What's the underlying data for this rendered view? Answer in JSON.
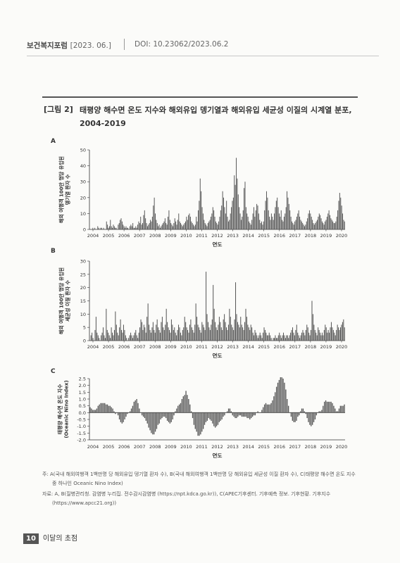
{
  "header": {
    "journal": "보건복지포럼",
    "date": "[2023. 06.]",
    "doi": "DOI: 10.23062/2023.06.2"
  },
  "figure": {
    "label": "[그림 2]",
    "title": "태평양 해수면 온도 지수와 해외유입 뎅기열과 해외유입 세균성 이질의 시계열 분포, 2004-2019"
  },
  "chart_data": [
    {
      "panel": "A",
      "type": "bar",
      "ylabel": "해외 여행객 100만 명당 유입된 뎅기열 환자 수",
      "xlabel": "연도",
      "ylim": [
        0,
        50
      ],
      "yticks": [
        0,
        10,
        20,
        30,
        40,
        50
      ],
      "xticks": [
        "2004",
        "2005",
        "2006",
        "2007",
        "2008",
        "2009",
        "2010",
        "2011",
        "2012",
        "2013",
        "2014",
        "2015",
        "2016",
        "2017",
        "2018",
        "2019",
        "2020"
      ],
      "x_start": "2004-01",
      "values": [
        0,
        0,
        0,
        1,
        0,
        1,
        0,
        0,
        2,
        1,
        0,
        1,
        1,
        0,
        1,
        0,
        0,
        5,
        3,
        1,
        2,
        6,
        2,
        1,
        3,
        2,
        1,
        1,
        0,
        3,
        4,
        6,
        7,
        5,
        3,
        2,
        1,
        2,
        1,
        1,
        0,
        2,
        3,
        2,
        4,
        1,
        1,
        2,
        1,
        3,
        5,
        4,
        8,
        3,
        4,
        9,
        12,
        7,
        4,
        2,
        3,
        4,
        6,
        5,
        8,
        15,
        20,
        10,
        6,
        4,
        2,
        3,
        1,
        2,
        3,
        4,
        5,
        7,
        4,
        3,
        8,
        12,
        6,
        4,
        3,
        2,
        4,
        7,
        5,
        3,
        6,
        10,
        5,
        4,
        3,
        2,
        3,
        4,
        5,
        8,
        6,
        9,
        10,
        8,
        5,
        4,
        3,
        2,
        3,
        8,
        5,
        12,
        18,
        32,
        24,
        14,
        10,
        6,
        4,
        3,
        2,
        4,
        5,
        6,
        8,
        10,
        14,
        12,
        8,
        5,
        4,
        3,
        5,
        8,
        12,
        15,
        24,
        20,
        14,
        10,
        18,
        8,
        5,
        6,
        10,
        14,
        18,
        20,
        34,
        28,
        45,
        32,
        22,
        14,
        10,
        6,
        8,
        12,
        26,
        30,
        14,
        10,
        8,
        5,
        4,
        3,
        6,
        10,
        14,
        8,
        12,
        16,
        15,
        10,
        6,
        4,
        5,
        3,
        5,
        12,
        18,
        24,
        20,
        12,
        8,
        6,
        10,
        8,
        6,
        10,
        14,
        18,
        20,
        14,
        10,
        8,
        12,
        6,
        5,
        8,
        10,
        14,
        24,
        20,
        16,
        12,
        8,
        5,
        4,
        3,
        5,
        6,
        8,
        10,
        12,
        8,
        6,
        5,
        4,
        3,
        2,
        3,
        5,
        7,
        10,
        12,
        10,
        8,
        6,
        4,
        3,
        4,
        5,
        6,
        8,
        10,
        9,
        7,
        5,
        4,
        3,
        5,
        6,
        8,
        10,
        12,
        9,
        7,
        6,
        5,
        4,
        4,
        5,
        8,
        12,
        18,
        23,
        20,
        15,
        10,
        6,
        5
      ]
    },
    {
      "panel": "B",
      "type": "bar",
      "ylabel": "해외 여행객 100만 명당 유입된 세균성 이질 환자 수",
      "xlabel": "연도",
      "ylim": [
        0,
        30
      ],
      "yticks": [
        0,
        5,
        10,
        15,
        20,
        25,
        30
      ],
      "xticks": [
        "2004",
        "2005",
        "2006",
        "2007",
        "2008",
        "2009",
        "2010",
        "2011",
        "2012",
        "2013",
        "2014",
        "2015",
        "2016",
        "2017",
        "2018",
        "2019",
        "2020"
      ],
      "x_start": "2004-01",
      "values": [
        0,
        2,
        3,
        1,
        0,
        4,
        9,
        3,
        2,
        1,
        0,
        2,
        3,
        5,
        2,
        1,
        12,
        4,
        3,
        2,
        1,
        5,
        3,
        2,
        4,
        11,
        6,
        3,
        2,
        5,
        8,
        4,
        3,
        6,
        4,
        2,
        1,
        0,
        1,
        2,
        3,
        2,
        1,
        2,
        3,
        4,
        2,
        1,
        3,
        5,
        8,
        7,
        4,
        6,
        5,
        3,
        9,
        14,
        6,
        4,
        3,
        5,
        7,
        4,
        3,
        6,
        8,
        5,
        4,
        3,
        7,
        9,
        5,
        4,
        6,
        12,
        7,
        5,
        4,
        3,
        8,
        6,
        4,
        5,
        3,
        2,
        4,
        6,
        5,
        3,
        2,
        4,
        5,
        9,
        7,
        5,
        4,
        3,
        6,
        8,
        5,
        4,
        3,
        6,
        14,
        9,
        6,
        5,
        4,
        3,
        7,
        6,
        5,
        4,
        26,
        10,
        7,
        5,
        4,
        6,
        8,
        21,
        12,
        7,
        5,
        4,
        6,
        9,
        7,
        5,
        4,
        8,
        10,
        7,
        5,
        4,
        6,
        12,
        9,
        6,
        5,
        4,
        8,
        22,
        10,
        7,
        6,
        5,
        9,
        6,
        5,
        4,
        7,
        12,
        9,
        6,
        5,
        4,
        6,
        5,
        3,
        2,
        4,
        3,
        2,
        1,
        2,
        3,
        2,
        1,
        3,
        5,
        4,
        3,
        2,
        2,
        3,
        2,
        1,
        0,
        1,
        1,
        2,
        1,
        1,
        2,
        3,
        2,
        1,
        2,
        3,
        2,
        1,
        2,
        2,
        1,
        2,
        3,
        4,
        5,
        3,
        2,
        4,
        6,
        3,
        2,
        1,
        2,
        3,
        4,
        3,
        2,
        4,
        6,
        5,
        3,
        2,
        4,
        15,
        10,
        6,
        4,
        3,
        2,
        5,
        4,
        3,
        2,
        3,
        2,
        4,
        6,
        5,
        3,
        4,
        3,
        5,
        7,
        5,
        4,
        3,
        2,
        4,
        6,
        5,
        4,
        5,
        6,
        7,
        8,
        5
      ]
    },
    {
      "panel": "C",
      "type": "bar",
      "ylabel": "태평양 해수면 온도 지수 (Oceanic Nino Index)",
      "xlabel": "연도",
      "ylim": [
        -2.0,
        2.5
      ],
      "yticks": [
        2.5,
        2.0,
        1.5,
        1.0,
        0.5,
        0.0,
        -0.5,
        -1.0,
        -1.5,
        -2.0
      ],
      "xticks": [
        "2004",
        "2005",
        "2006",
        "2007",
        "2008",
        "2009",
        "2010",
        "2011",
        "2012",
        "2013",
        "2014",
        "2015",
        "2016",
        "2017",
        "2018",
        "2019",
        "2020"
      ],
      "x_start": "2004-01",
      "values": [
        0.4,
        0.3,
        0.2,
        0.2,
        0.2,
        0.3,
        0.5,
        0.6,
        0.7,
        0.7,
        0.7,
        0.7,
        0.6,
        0.6,
        0.5,
        0.5,
        0.4,
        0.3,
        0.1,
        -0.1,
        0.0,
        -0.2,
        -0.5,
        -0.7,
        -0.8,
        -0.7,
        -0.5,
        -0.3,
        -0.1,
        0.0,
        0.1,
        0.3,
        0.5,
        0.8,
        0.9,
        1.0,
        0.7,
        0.3,
        0.0,
        -0.2,
        -0.3,
        -0.4,
        -0.6,
        -0.8,
        -1.1,
        -1.3,
        -1.5,
        -1.6,
        -1.6,
        -1.4,
        -1.2,
        -0.9,
        -0.8,
        -0.5,
        -0.4,
        -0.3,
        -0.3,
        -0.4,
        -0.6,
        -0.7,
        -0.8,
        -0.7,
        -0.5,
        -0.2,
        0.1,
        0.3,
        0.5,
        0.6,
        0.7,
        1.0,
        1.2,
        1.3,
        1.6,
        1.3,
        1.0,
        0.6,
        0.1,
        -0.4,
        -0.9,
        -1.2,
        -1.4,
        -1.7,
        -1.7,
        -1.6,
        -1.4,
        -1.2,
        -0.9,
        -0.7,
        -0.6,
        -0.4,
        -0.5,
        -0.6,
        -0.8,
        -1.0,
        -1.1,
        -1.0,
        -0.9,
        -0.7,
        -0.6,
        -0.5,
        -0.3,
        -0.2,
        0.0,
        0.1,
        0.3,
        0.3,
        0.1,
        -0.2,
        -0.3,
        -0.4,
        -0.4,
        -0.3,
        -0.2,
        -0.2,
        -0.3,
        -0.3,
        -0.3,
        -0.3,
        -0.4,
        -0.4,
        -0.5,
        -0.4,
        -0.3,
        -0.2,
        -0.2,
        0.0,
        0.1,
        0.0,
        0.0,
        0.2,
        0.4,
        0.6,
        0.7,
        0.6,
        0.6,
        0.6,
        0.7,
        0.9,
        1.2,
        1.5,
        1.9,
        2.2,
        2.4,
        2.6,
        2.6,
        2.5,
        2.2,
        1.7,
        1.0,
        0.5,
        0.0,
        -0.3,
        -0.6,
        -0.7,
        -0.7,
        -0.6,
        -0.3,
        -0.2,
        0.1,
        0.3,
        0.3,
        0.1,
        -0.1,
        -0.4,
        -0.7,
        -0.9,
        -1.0,
        -0.9,
        -0.7,
        -0.5,
        -0.2,
        0.0,
        0.1,
        0.1,
        0.2,
        0.5,
        0.8,
        0.9,
        0.8,
        0.8,
        0.8,
        0.8,
        0.7,
        0.5,
        0.3,
        0.1,
        0.1,
        0.3,
        0.5,
        0.5,
        0.5,
        0.6
      ]
    }
  ],
  "notes": {
    "note": "주: A(국내 해외여행객 1백만명 당 해외유입 뎅기열 환자 수), B(국내 해외여행객 1백만명 당 해외유입 세균성 이질 환자 수), C(태평양 해수면 온도 지수 중 하나인 Oceanic Nino Index)",
    "source": "자료: A, B(질병관리청. 감염병 누리집. 전수감시감염병 (https://npt.kdca.go.kr)), C(APEC기후센터. 기후예측 정보. 기후현황. 기후지수 (https://www.apcc21.org))"
  },
  "footer": {
    "page": "10",
    "section": "이달의 초점"
  },
  "colors": {
    "bar": "#555555",
    "axis": "#333333",
    "rule": "#555555"
  }
}
